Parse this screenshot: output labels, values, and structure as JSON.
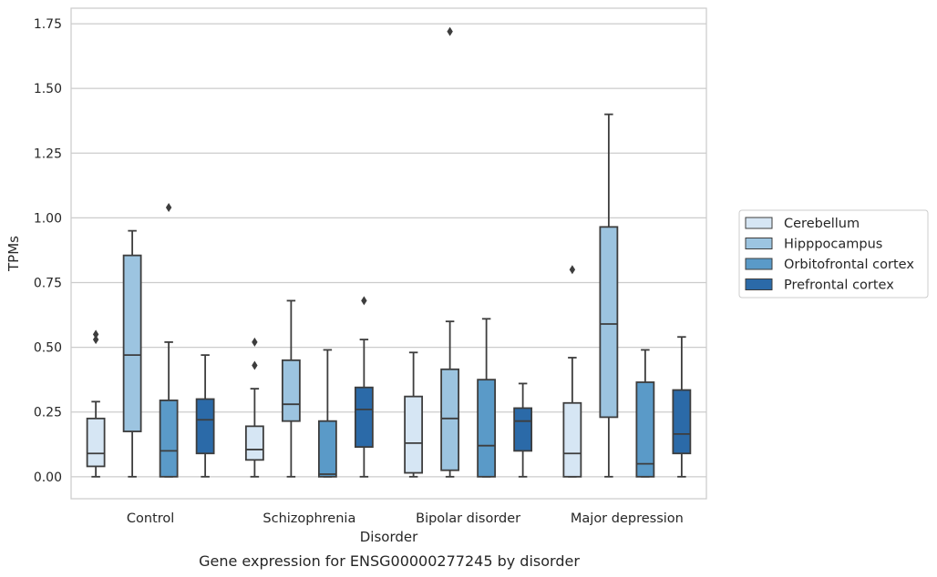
{
  "chart_data": {
    "type": "box",
    "title": "",
    "caption": "Gene expression for ENSG00000277245 by disorder",
    "xlabel": "Disorder",
    "ylabel": "TPMs",
    "ylim": [
      -0.085,
      1.81
    ],
    "yticks": [
      0.0,
      0.25,
      0.5,
      0.75,
      1.0,
      1.25,
      1.5,
      1.75
    ],
    "ytick_labels": [
      "0.00",
      "0.25",
      "0.50",
      "0.75",
      "1.00",
      "1.25",
      "1.50",
      "1.75"
    ],
    "grid": "horizontal",
    "legend_position": "right",
    "categories": [
      "Control",
      "Schizophrenia",
      "Bipolar disorder",
      "Major depression"
    ],
    "series": [
      {
        "name": "Cerebellum",
        "color": "#d6e6f4",
        "boxes": [
          {
            "whisker_low": 0.0,
            "q1": 0.04,
            "median": 0.09,
            "q3": 0.225,
            "whisker_high": 0.29,
            "outliers": [
              0.53,
              0.55
            ]
          },
          {
            "whisker_low": 0.0,
            "q1": 0.065,
            "median": 0.105,
            "q3": 0.195,
            "whisker_high": 0.34,
            "outliers": [
              0.43,
              0.52
            ]
          },
          {
            "whisker_low": 0.0,
            "q1": 0.015,
            "median": 0.13,
            "q3": 0.31,
            "whisker_high": 0.48,
            "outliers": []
          },
          {
            "whisker_low": 0.0,
            "q1": 0.0,
            "median": 0.09,
            "q3": 0.285,
            "whisker_high": 0.46,
            "outliers": [
              0.8
            ]
          }
        ]
      },
      {
        "name": "Hipppocampus",
        "color": "#9cc4e0",
        "boxes": [
          {
            "whisker_low": 0.0,
            "q1": 0.175,
            "median": 0.47,
            "q3": 0.855,
            "whisker_high": 0.95,
            "outliers": []
          },
          {
            "whisker_low": 0.0,
            "q1": 0.215,
            "median": 0.28,
            "q3": 0.45,
            "whisker_high": 0.68,
            "outliers": []
          },
          {
            "whisker_low": 0.0,
            "q1": 0.025,
            "median": 0.225,
            "q3": 0.415,
            "whisker_high": 0.6,
            "outliers": [
              1.72
            ]
          },
          {
            "whisker_low": 0.0,
            "q1": 0.23,
            "median": 0.59,
            "q3": 0.965,
            "whisker_high": 1.4,
            "outliers": []
          }
        ]
      },
      {
        "name": "Orbitofrontal cortex",
        "color": "#5a9ac8",
        "boxes": [
          {
            "whisker_low": 0.0,
            "q1": 0.0,
            "median": 0.1,
            "q3": 0.295,
            "whisker_high": 0.52,
            "outliers": [
              1.04
            ]
          },
          {
            "whisker_low": 0.0,
            "q1": 0.0,
            "median": 0.01,
            "q3": 0.215,
            "whisker_high": 0.49,
            "outliers": []
          },
          {
            "whisker_low": 0.0,
            "q1": 0.0,
            "median": 0.12,
            "q3": 0.375,
            "whisker_high": 0.61,
            "outliers": []
          },
          {
            "whisker_low": 0.0,
            "q1": 0.0,
            "median": 0.05,
            "q3": 0.365,
            "whisker_high": 0.49,
            "outliers": []
          }
        ]
      },
      {
        "name": "Prefrontal cortex",
        "color": "#2b6aa8",
        "boxes": [
          {
            "whisker_low": 0.0,
            "q1": 0.09,
            "median": 0.22,
            "q3": 0.3,
            "whisker_high": 0.47,
            "outliers": []
          },
          {
            "whisker_low": 0.0,
            "q1": 0.115,
            "median": 0.26,
            "q3": 0.345,
            "whisker_high": 0.53,
            "outliers": [
              0.68
            ]
          },
          {
            "whisker_low": 0.0,
            "q1": 0.1,
            "median": 0.215,
            "q3": 0.265,
            "whisker_high": 0.36,
            "outliers": []
          },
          {
            "whisker_low": 0.0,
            "q1": 0.09,
            "median": 0.165,
            "q3": 0.335,
            "whisker_high": 0.54,
            "outliers": []
          }
        ]
      }
    ]
  }
}
